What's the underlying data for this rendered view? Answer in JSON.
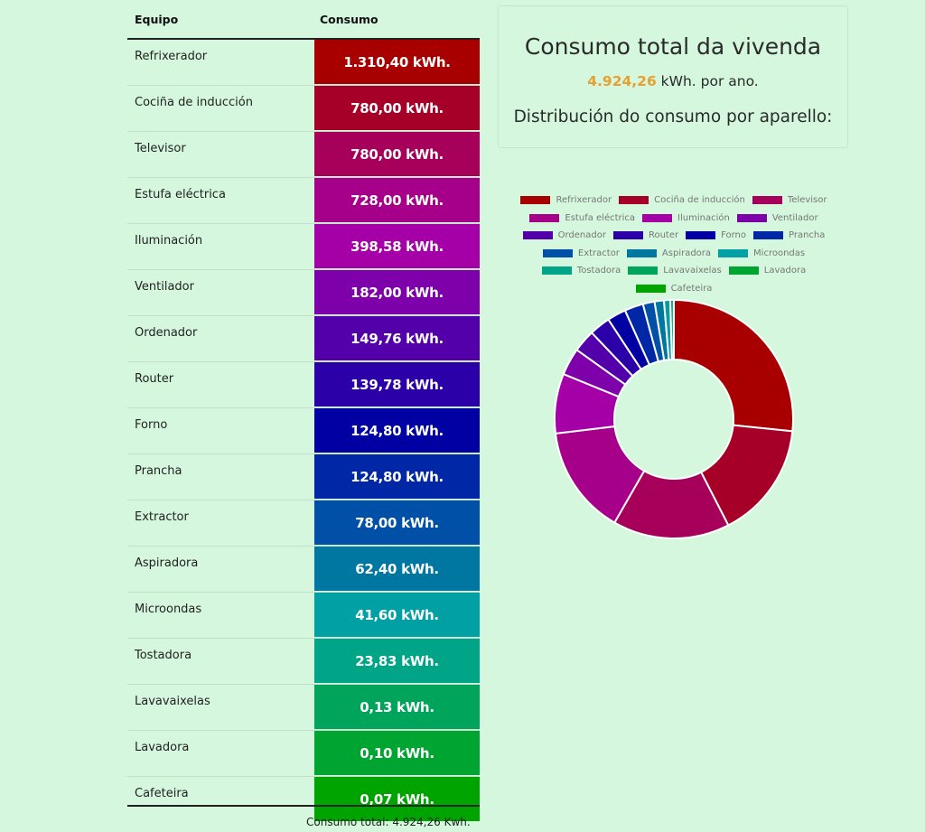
{
  "table": {
    "header_equipo": "Equipo",
    "header_consumo": "Consumo",
    "rows": [
      {
        "name": "Refrixerador",
        "value": "1.310,40 kWh."
      },
      {
        "name": "Cociña de inducción",
        "value": "780,00 kWh."
      },
      {
        "name": "Televisor",
        "value": "780,00 kWh."
      },
      {
        "name": "Estufa eléctrica",
        "value": "728,00 kWh."
      },
      {
        "name": "Iluminación",
        "value": "398,58 kWh."
      },
      {
        "name": "Ventilador",
        "value": "182,00 kWh."
      },
      {
        "name": "Ordenador",
        "value": "149,76 kWh."
      },
      {
        "name": "Router",
        "value": "139,78 kWh."
      },
      {
        "name": "Forno",
        "value": "124,80 kWh."
      },
      {
        "name": "Prancha",
        "value": "124,80 kWh."
      },
      {
        "name": "Extractor",
        "value": "78,00 kWh."
      },
      {
        "name": "Aspiradora",
        "value": "62,40 kWh."
      },
      {
        "name": "Microondas",
        "value": "41,60 kWh."
      },
      {
        "name": "Tostadora",
        "value": "23,83 kWh."
      },
      {
        "name": "Lavavaixelas",
        "value": "0,13 kWh."
      },
      {
        "name": "Lavadora",
        "value": "0,10 kWh."
      },
      {
        "name": "Cafeteira",
        "value": "0,07 kWh."
      }
    ],
    "footer_total": "Consumo total: 4.924,26 Kwh."
  },
  "summary": {
    "title": "Consumo total da vivenda",
    "total_value": "4.924,26",
    "total_suffix": " kWh. por ano.",
    "subtitle": "Distribución do consumo por aparello:"
  },
  "colors": [
    "#a80000",
    "#a70028",
    "#a6005a",
    "#a6008a",
    "#a500a8",
    "#7e00ab",
    "#5300ab",
    "#2c00a9",
    "#0000a3",
    "#0028a6",
    "#0050a8",
    "#0077a0",
    "#00a0a4",
    "#00a486",
    "#00a45a",
    "#00a431",
    "#00a400"
  ],
  "chart_data": {
    "type": "pie",
    "variant": "doughnut",
    "categories": [
      "Refrixerador",
      "Cociña de inducción",
      "Televisor",
      "Estufa eléctrica",
      "Iluminación",
      "Ventilador",
      "Ordenador",
      "Router",
      "Forno",
      "Prancha",
      "Extractor",
      "Aspiradora",
      "Microondas",
      "Tostadora",
      "Lavavaixelas",
      "Lavadora",
      "Cafeteira"
    ],
    "values": [
      1310.4,
      780.0,
      780.0,
      728.0,
      398.58,
      182.0,
      149.76,
      139.78,
      124.8,
      124.8,
      78.0,
      62.4,
      41.6,
      23.83,
      0.13,
      0.1,
      0.07
    ],
    "legend_position": "top"
  }
}
